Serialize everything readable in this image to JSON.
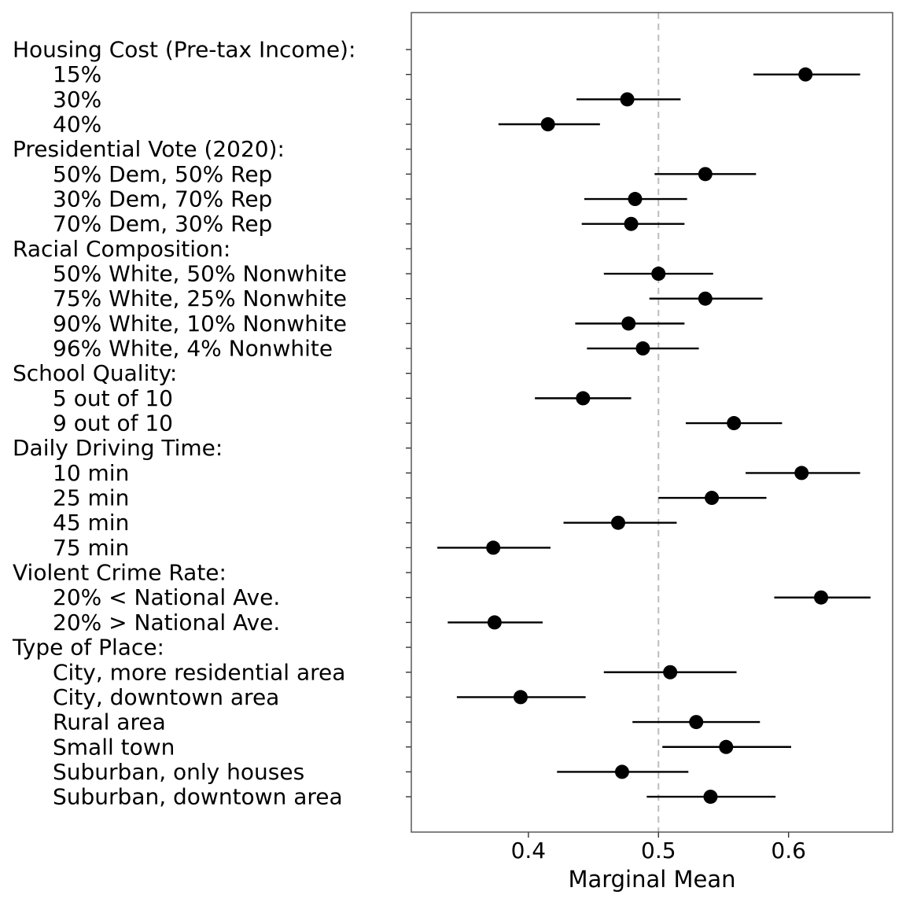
{
  "chart_data": {
    "type": "scatter",
    "subtype": "coefficient-plot-with-confidence-intervals",
    "xlabel": "Marginal Mean",
    "ylabel": "",
    "xlim": [
      0.31,
      0.68
    ],
    "xticks": [
      0.4,
      0.5,
      0.6
    ],
    "xtick_labels": [
      "0.4",
      "0.5",
      "0.6"
    ],
    "reference_line": {
      "x": 0.5,
      "style": "dashed",
      "color": "#bdbdbd"
    },
    "grid": false,
    "legend": "none",
    "point_color": "#000000",
    "rows": [
      {
        "label": "Housing Cost (Pre-tax Income):",
        "header": true
      },
      {
        "label": "15%",
        "estimate": 0.613,
        "lower": 0.573,
        "upper": 0.655
      },
      {
        "label": "30%",
        "estimate": 0.476,
        "lower": 0.437,
        "upper": 0.517
      },
      {
        "label": "40%",
        "estimate": 0.415,
        "lower": 0.377,
        "upper": 0.455
      },
      {
        "label": "Presidential Vote (2020):",
        "header": true
      },
      {
        "label": "50% Dem, 50% Rep",
        "estimate": 0.536,
        "lower": 0.497,
        "upper": 0.575
      },
      {
        "label": "30% Dem, 70% Rep",
        "estimate": 0.482,
        "lower": 0.443,
        "upper": 0.522
      },
      {
        "label": "70% Dem, 30% Rep",
        "estimate": 0.479,
        "lower": 0.441,
        "upper": 0.52
      },
      {
        "label": "Racial Composition:",
        "header": true
      },
      {
        "label": "50% White, 50% Nonwhite",
        "estimate": 0.5,
        "lower": 0.458,
        "upper": 0.542
      },
      {
        "label": "75% White, 25% Nonwhite",
        "estimate": 0.536,
        "lower": 0.493,
        "upper": 0.58
      },
      {
        "label": "90% White, 10% Nonwhite",
        "estimate": 0.477,
        "lower": 0.436,
        "upper": 0.52
      },
      {
        "label": "96% White, 4% Nonwhite",
        "estimate": 0.488,
        "lower": 0.445,
        "upper": 0.531
      },
      {
        "label": "School Quality:",
        "header": true
      },
      {
        "label": "5 out of 10",
        "estimate": 0.442,
        "lower": 0.405,
        "upper": 0.479
      },
      {
        "label": "9 out of 10",
        "estimate": 0.558,
        "lower": 0.521,
        "upper": 0.595
      },
      {
        "label": "Daily Driving Time:",
        "header": true
      },
      {
        "label": "10 min",
        "estimate": 0.61,
        "lower": 0.567,
        "upper": 0.655
      },
      {
        "label": "25 min",
        "estimate": 0.541,
        "lower": 0.5,
        "upper": 0.583
      },
      {
        "label": "45 min",
        "estimate": 0.469,
        "lower": 0.427,
        "upper": 0.514
      },
      {
        "label": "75 min",
        "estimate": 0.373,
        "lower": 0.33,
        "upper": 0.417
      },
      {
        "label": "Violent Crime Rate:",
        "header": true
      },
      {
        "label": "20% < National Ave.",
        "estimate": 0.625,
        "lower": 0.589,
        "upper": 0.663
      },
      {
        "label": "20% > National Ave.",
        "estimate": 0.374,
        "lower": 0.338,
        "upper": 0.411
      },
      {
        "label": "Type of Place:",
        "header": true
      },
      {
        "label": "City, more residential area",
        "estimate": 0.509,
        "lower": 0.458,
        "upper": 0.56
      },
      {
        "label": "City, downtown area",
        "estimate": 0.394,
        "lower": 0.345,
        "upper": 0.444
      },
      {
        "label": "Rural area",
        "estimate": 0.529,
        "lower": 0.48,
        "upper": 0.578
      },
      {
        "label": "Small town",
        "estimate": 0.552,
        "lower": 0.503,
        "upper": 0.602
      },
      {
        "label": "Suburban, only houses",
        "estimate": 0.472,
        "lower": 0.422,
        "upper": 0.523
      },
      {
        "label": "Suburban, downtown area",
        "estimate": 0.54,
        "lower": 0.491,
        "upper": 0.59
      }
    ]
  }
}
